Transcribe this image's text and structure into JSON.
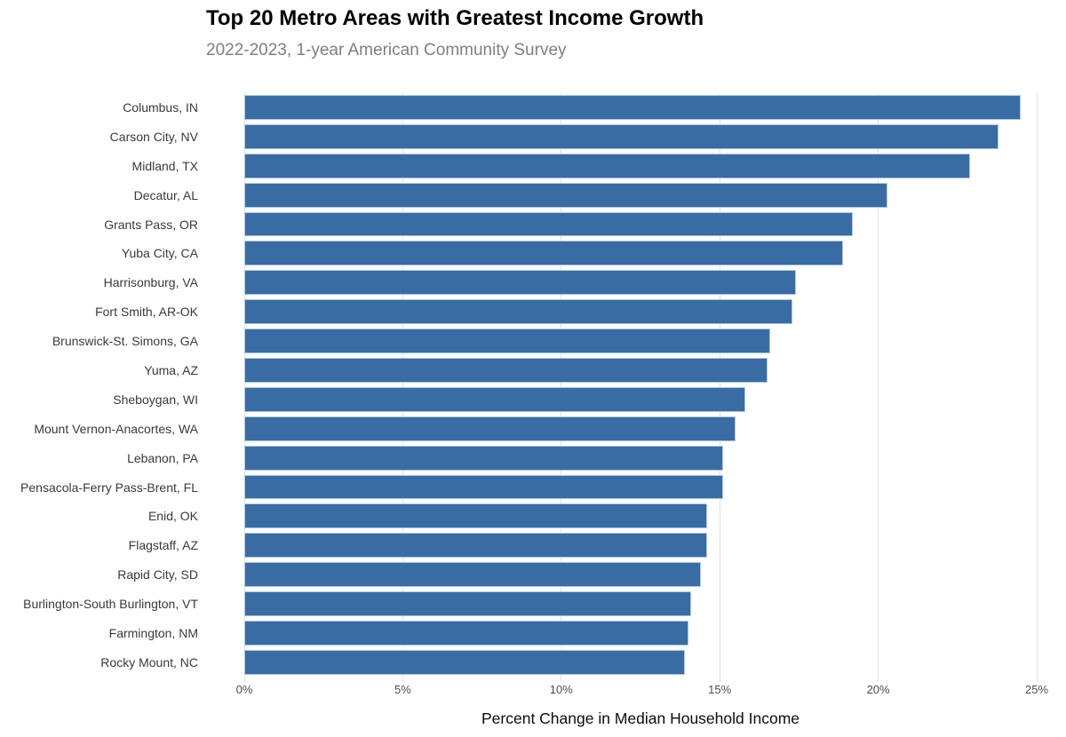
{
  "header": {
    "title": "Top 20 Metro Areas with Greatest Income Growth",
    "subtitle": "2022-2023, 1-year American Community Survey"
  },
  "chart_data": {
    "type": "bar",
    "orientation": "horizontal",
    "title": "Top 20 Metro Areas with Greatest Income Growth",
    "subtitle": "2022-2023, 1-year American Community Survey",
    "xlabel": "Percent Change in Median Household Income",
    "ylabel": "",
    "xlim": [
      0,
      25
    ],
    "x_ticks": [
      "0%",
      "5%",
      "10%",
      "15%",
      "20%",
      "25%"
    ],
    "x_tick_values": [
      0,
      5,
      10,
      15,
      20,
      25
    ],
    "grid": "vertical-only",
    "legend": "none",
    "bar_color": "#3a6ca4",
    "bar_border_color": "#a9c7e2",
    "gridline_color": "#e2e2e2",
    "categories": [
      "Columbus, IN",
      "Carson City, NV",
      "Midland, TX",
      "Decatur, AL",
      "Grants Pass, OR",
      "Yuba City, CA",
      "Harrisonburg, VA",
      "Fort Smith, AR-OK",
      "Brunswick-St. Simons, GA",
      "Yuma, AZ",
      "Sheboygan, WI",
      "Mount Vernon-Anacortes, WA",
      "Lebanon, PA",
      "Pensacola-Ferry Pass-Brent, FL",
      "Enid, OK",
      "Flagstaff, AZ",
      "Rapid City, SD",
      "Burlington-South Burlington, VT",
      "Farmington, NM",
      "Rocky Mount, NC"
    ],
    "values": [
      24.5,
      23.8,
      22.9,
      20.3,
      19.2,
      18.9,
      17.4,
      17.3,
      16.6,
      16.5,
      15.8,
      15.5,
      15.1,
      15.1,
      14.6,
      14.6,
      14.4,
      14.1,
      14.0,
      13.9
    ],
    "values_unit": "%"
  }
}
